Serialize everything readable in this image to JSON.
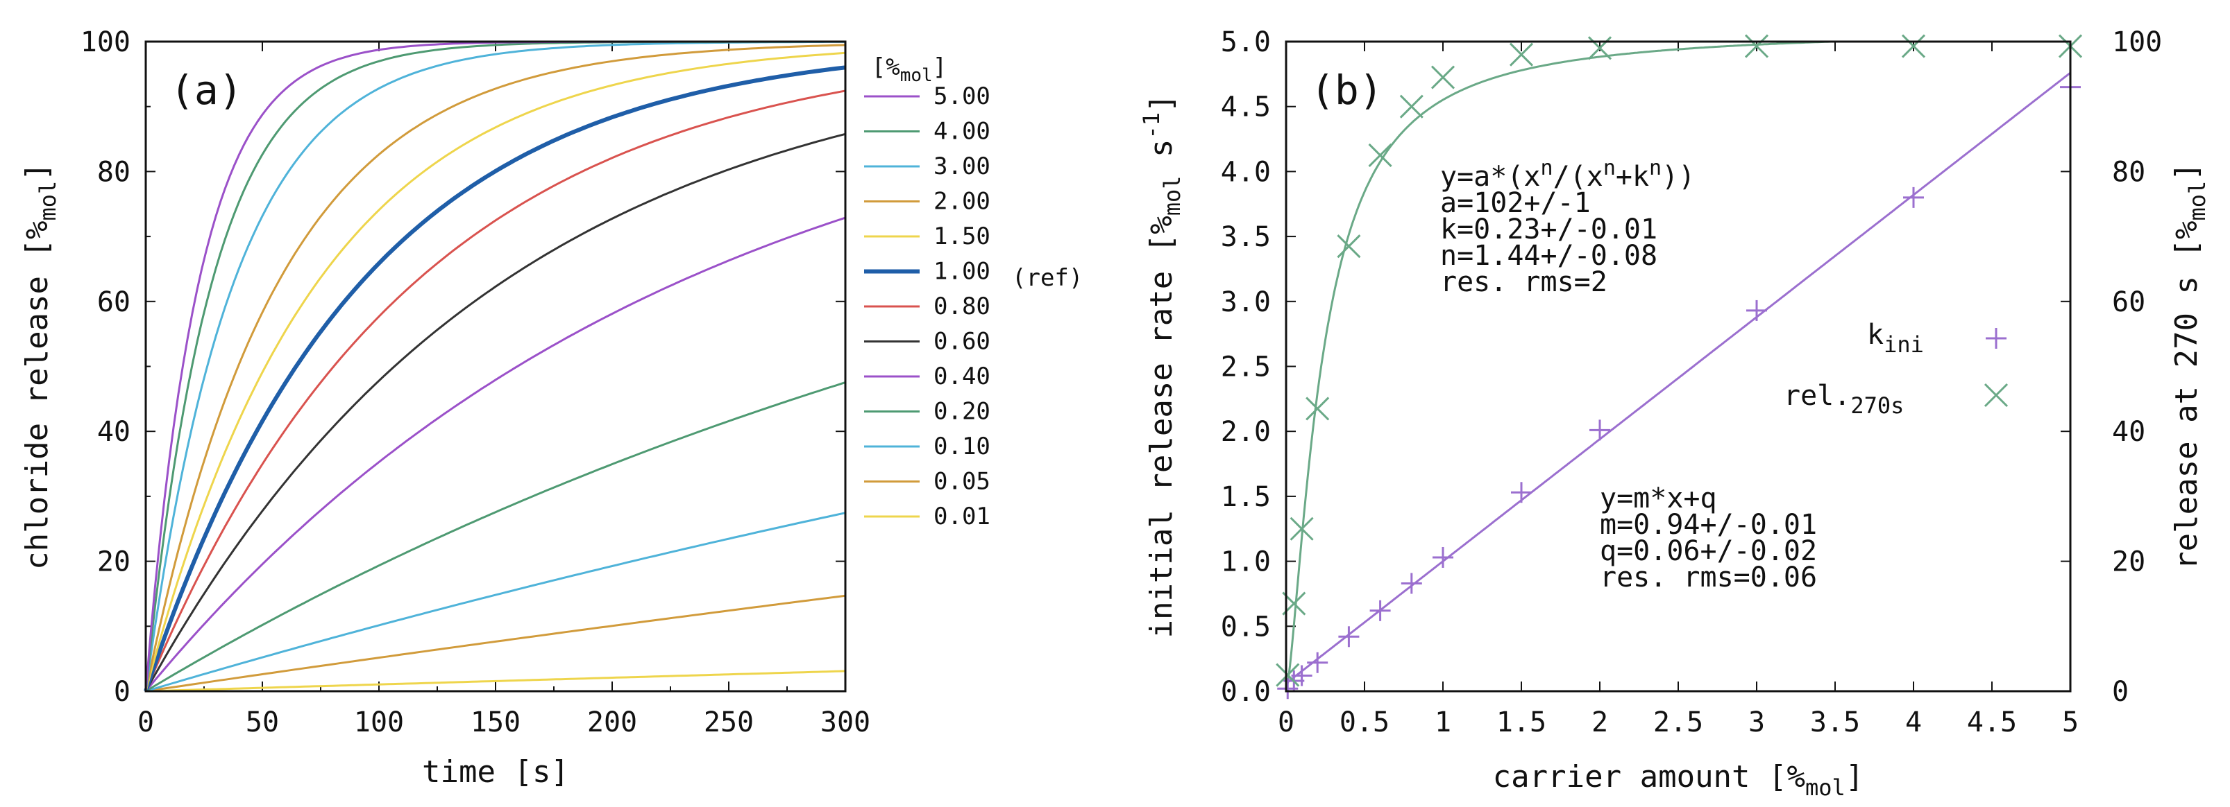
{
  "chart_data": [
    {
      "panel": "(a)",
      "type": "line",
      "xlabel": "time [s]",
      "ylabel": "chloride release [%mol]",
      "ylabel_prefix": "chloride release [",
      "ylabel_unit": "%",
      "ylabel_sub": "mol",
      "ylabel_suffix": "]",
      "xlim": [
        0,
        300
      ],
      "ylim": [
        0,
        100
      ],
      "xticks": [
        "0",
        "50",
        "100",
        "150",
        "200",
        "250",
        "300"
      ],
      "yticks": [
        "0",
        "20",
        "40",
        "60",
        "80",
        "100"
      ],
      "legend_title": "[%mol]",
      "legend_title_main": "[%",
      "legend_title_sub": "mol",
      "legend_title_end": "]",
      "ref_label": "(ref)",
      "model": "y = 100 * (1 - exp(-k t))",
      "series": [
        {
          "name": "5.00",
          "color": "#9b51c9",
          "k": 0.0437,
          "width": 3,
          "values_t": [
            0,
            50,
            100,
            150,
            200,
            250,
            300
          ],
          "values_y": [
            0,
            88.8,
            98.7,
            99.9,
            100,
            100,
            100
          ]
        },
        {
          "name": "4.00",
          "color": "#4e9a72",
          "k": 0.035,
          "width": 3,
          "values_t": [
            0,
            50,
            100,
            150,
            200,
            250,
            300
          ],
          "values_y": [
            0,
            82.6,
            97.0,
            99.5,
            99.9,
            100,
            100
          ]
        },
        {
          "name": "3.00",
          "color": "#4fb3d9",
          "k": 0.0263,
          "width": 3,
          "values_t": [
            0,
            50,
            100,
            150,
            200,
            250,
            300
          ],
          "values_y": [
            0,
            73.1,
            92.8,
            98.1,
            99.5,
            99.9,
            100
          ]
        },
        {
          "name": "2.00",
          "color": "#d19b3b",
          "k": 0.0175,
          "width": 3,
          "values_t": [
            0,
            50,
            100,
            150,
            200,
            250,
            300
          ],
          "values_y": [
            0,
            58.3,
            82.6,
            92.8,
            97.0,
            98.7,
            99.5
          ]
        },
        {
          "name": "1.50",
          "color": "#eed54c",
          "k": 0.0135,
          "width": 3,
          "values_t": [
            0,
            50,
            100,
            150,
            200,
            250,
            300
          ],
          "values_y": [
            0,
            49.1,
            74.1,
            86.8,
            93.3,
            96.6,
            98.3
          ]
        },
        {
          "name": "1.00",
          "color": "#1f5ea8",
          "k": 0.01075,
          "width": 6,
          "values_t": [
            0,
            50,
            100,
            150,
            200,
            250,
            300
          ],
          "values_y": [
            0,
            41.6,
            65.9,
            80.1,
            88.4,
            93.2,
            96.0
          ]
        },
        {
          "name": "0.80",
          "color": "#d9534f",
          "k": 0.0086,
          "width": 3,
          "values_t": [
            0,
            50,
            100,
            150,
            200,
            250,
            300
          ],
          "values_y": [
            0,
            34.9,
            57.7,
            72.5,
            82.1,
            88.4,
            92.4
          ]
        },
        {
          "name": "0.60",
          "color": "#333333",
          "k": 0.0065,
          "width": 3,
          "values_t": [
            0,
            50,
            100,
            150,
            200,
            250,
            300
          ],
          "values_y": [
            0,
            27.7,
            47.8,
            62.3,
            72.7,
            80.3,
            85.8
          ]
        },
        {
          "name": "0.40",
          "color": "#9b51c9",
          "k": 0.00435,
          "width": 3,
          "values_t": [
            0,
            50,
            100,
            150,
            200,
            250,
            300
          ],
          "values_y": [
            0,
            19.5,
            35.3,
            47.9,
            58.1,
            66.3,
            72.9
          ]
        },
        {
          "name": "0.20",
          "color": "#4e9a72",
          "k": 0.00215,
          "width": 3,
          "values_t": [
            0,
            50,
            100,
            150,
            200,
            250,
            300
          ],
          "values_y": [
            0,
            10.2,
            19.3,
            27.6,
            35.0,
            41.6,
            47.5
          ]
        },
        {
          "name": "0.10",
          "color": "#4fb3d9",
          "k": 0.00107,
          "width": 3,
          "values_t": [
            0,
            50,
            100,
            150,
            200,
            250,
            300
          ],
          "values_y": [
            0,
            5.2,
            10.1,
            14.8,
            19.3,
            23.5,
            27.5
          ]
        },
        {
          "name": "0.05",
          "color": "#d19b3b",
          "k": 0.00053,
          "width": 3,
          "values_t": [
            0,
            50,
            100,
            150,
            200,
            250,
            300
          ],
          "values_y": [
            0,
            2.6,
            5.2,
            7.6,
            10.1,
            12.4,
            14.7
          ]
        },
        {
          "name": "0.01",
          "color": "#eed54c",
          "k": 0.000105,
          "width": 3,
          "values_t": [
            0,
            50,
            100,
            150,
            200,
            250,
            300
          ],
          "values_y": [
            0,
            0.5,
            1.0,
            1.6,
            2.1,
            2.6,
            3.1
          ]
        }
      ]
    },
    {
      "panel": "(b)",
      "type": "scatter",
      "xlabel": "carrier amount [%mol]",
      "xlabel_prefix": "carrier amount [",
      "xlabel_unit": "%",
      "xlabel_sub": "mol",
      "xlabel_suffix": "]",
      "ylabel": "initial release rate [%mol s-1]",
      "ylabel_prefix": "initial release rate [",
      "ylabel_unit": "%",
      "ylabel_sub": "mol",
      "ylabel_s": " s",
      "ylabel_sup": "-1",
      "ylabel_suffix": "]",
      "y2label": "release at 270 s [%mol]",
      "y2label_prefix": "release at 270 s [",
      "y2label_unit": "%",
      "y2label_sub": "mol",
      "y2label_suffix": "]",
      "xlim": [
        0,
        5
      ],
      "ylim": [
        0,
        5
      ],
      "y2lim": [
        0,
        100
      ],
      "xticks": [
        "0",
        "0.5",
        "1",
        "1.5",
        "2",
        "2.5",
        "3",
        "3.5",
        "4",
        "4.5",
        "5"
      ],
      "yticks": [
        "0.0",
        "0.5",
        "1.0",
        "1.5",
        "2.0",
        "2.5",
        "3.0",
        "3.5",
        "4.0",
        "4.5",
        "5.0"
      ],
      "y2ticks": [
        "0",
        "20",
        "40",
        "60",
        "80",
        "100"
      ],
      "series": [
        {
          "name": "kini",
          "label_main": "k",
          "label_sub": "ini",
          "marker": "+",
          "color": "#9b6fcf",
          "axis": "left",
          "x": [
            0.01,
            0.05,
            0.1,
            0.2,
            0.4,
            0.6,
            0.8,
            1.0,
            1.5,
            2.0,
            3.0,
            4.0,
            5.0
          ],
          "y": [
            0.02,
            0.08,
            0.12,
            0.22,
            0.42,
            0.62,
            0.83,
            1.03,
            1.53,
            2.01,
            2.93,
            3.8,
            4.65
          ]
        },
        {
          "name": "rel.270s",
          "label_main": "rel.",
          "label_sub": "270s",
          "marker": "x",
          "color": "#6aa987",
          "axis": "right",
          "x": [
            0.01,
            0.05,
            0.1,
            0.2,
            0.4,
            0.6,
            0.8,
            1.0,
            1.5,
            2.0,
            3.0,
            4.0,
            5.0
          ],
          "y": [
            2.5,
            13.5,
            25.0,
            43.5,
            68.5,
            82.5,
            90.0,
            94.5,
            98.0,
            99.0,
            99.3,
            99.3,
            99.3
          ]
        }
      ],
      "fits": [
        {
          "series": "rel.270s",
          "type": "hill",
          "a": 102,
          "k": 0.23,
          "n": 1.44,
          "color": "#6aa987",
          "axis": "right"
        },
        {
          "series": "kini",
          "type": "linear",
          "m": 0.94,
          "q": 0.06,
          "color": "#9b6fcf",
          "axis": "left"
        }
      ],
      "annotations": {
        "hill": [
          "y=a*(xn/(xn+kn))",
          "a=102+/-1",
          "k=0.23+/-0.01",
          "n=1.44+/-0.08",
          "res. rms=2"
        ],
        "hill_eq": {
          "p1": "y=a*(x",
          "s1": "n",
          "p2": "/(x",
          "s2": "n",
          "p3": "+k",
          "s3": "n",
          "p4": "))"
        },
        "linear": [
          "y=m*x+q",
          "m=0.94+/-0.01",
          "q=0.06+/-0.02",
          "res. rms=0.06"
        ]
      }
    }
  ]
}
